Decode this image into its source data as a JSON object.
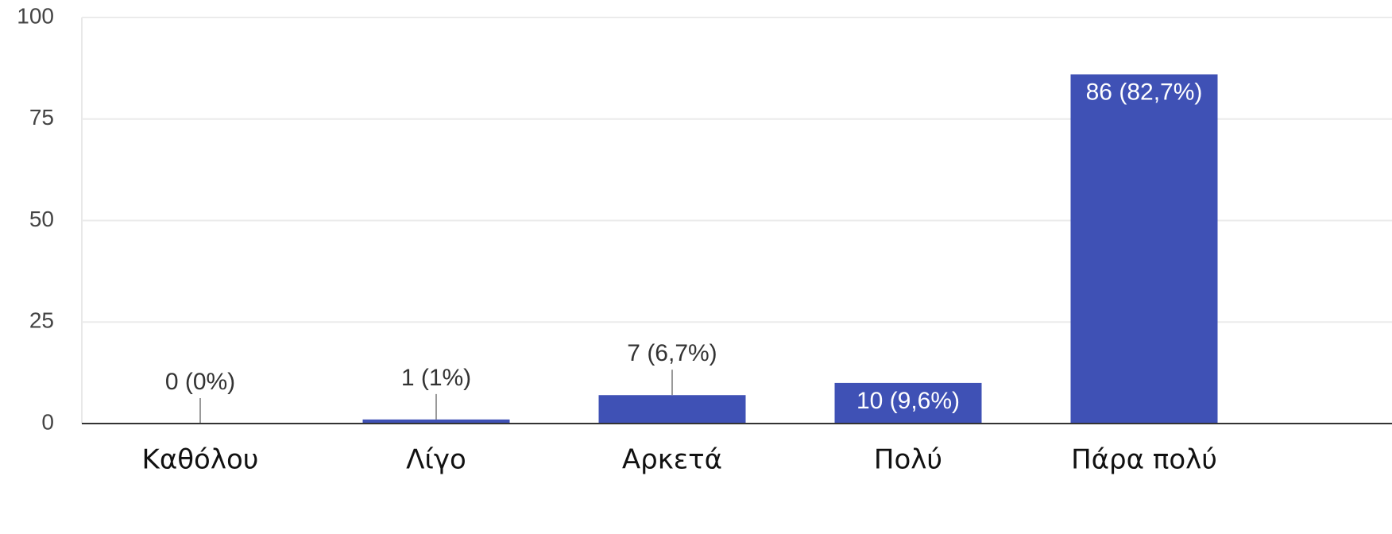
{
  "chart_data": {
    "type": "bar",
    "categories": [
      "Καθόλου",
      "Λίγο",
      "Αρκετά",
      "Πολύ",
      "Πάρα πολύ"
    ],
    "values": [
      0,
      1,
      7,
      10,
      86
    ],
    "value_labels": [
      "0 (0%)",
      "1 (1%)",
      "7 (6,7%)",
      "10 (9,6%)",
      "86 (82,7%)"
    ],
    "color": "#3f51b5",
    "ylim": [
      0,
      100
    ],
    "yticks": [
      0,
      25,
      50,
      75,
      100
    ],
    "grid": true
  }
}
